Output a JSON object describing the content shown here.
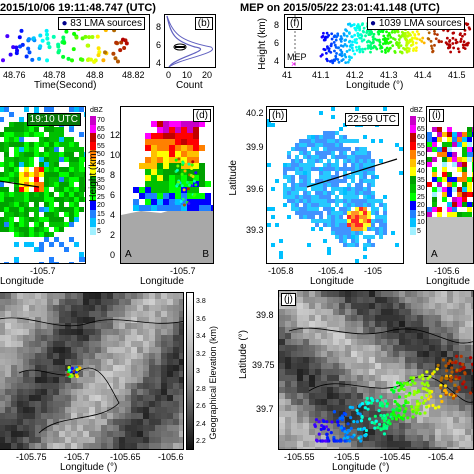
{
  "figure": {
    "left_title": "2015/10/06 19:11:48.747 (UTC)",
    "right_title": "MEP on 2015/05/22 23:01:41.148 (UTC)",
    "panels": {
      "a": {
        "xlabel": "Time(Second)",
        "xticks": [
          "48.76",
          "48.78",
          "48.8",
          "48.82"
        ],
        "legend": "83 LMA sources"
      },
      "b": {
        "label": "(b)",
        "xlabel": "Count",
        "xticks": [
          "0",
          "10",
          "20"
        ],
        "yticks": [
          "4",
          "6",
          "8"
        ]
      },
      "c": {
        "time": "19:10 UTC",
        "xlabel": "Longitude",
        "xtick": "-105.7"
      },
      "d": {
        "label": "(d)",
        "ylabel": "Height (km)",
        "xlabel": "Longitude",
        "xtick": "-105.7",
        "yticks": [
          "0",
          "2",
          "4",
          "6",
          "8",
          "10",
          "12"
        ],
        "corner_a": "A",
        "corner_b": "B",
        "cbar_title": "dBZ",
        "cbar": [
          "70",
          "65",
          "60",
          "55",
          "50",
          "45",
          "40",
          "35",
          "30",
          "25",
          "20",
          "15",
          "10",
          "5"
        ]
      },
      "f": {
        "label": "(f)",
        "ylabel": "Height (km)",
        "xlabel": "Longitude (°)",
        "xticks": [
          "41",
          "41.1",
          "41.2",
          "41.3",
          "41.4",
          "41.5"
        ],
        "yticks": [
          "4",
          "6",
          "8"
        ],
        "legend": "1039 LMA sources",
        "mep": "MEP"
      },
      "h": {
        "label": "(h)",
        "time": "22:59 UTC",
        "ylabel": "Latitude",
        "xlabel": "Longitude",
        "xticks": [
          "-105.8",
          "-105.4",
          "-105"
        ],
        "yticks": [
          "40.2",
          "39.9",
          "39.6",
          "39.3"
        ]
      },
      "i": {
        "label": "(i)",
        "xlabel": "Longitude",
        "xtick": "-105.6",
        "corner_a": "A",
        "cbar_title": "dBZ",
        "cbar": [
          "70",
          "65",
          "60",
          "55",
          "50",
          "45",
          "40",
          "35",
          "30",
          "25",
          "20",
          "15",
          "10",
          "5"
        ]
      },
      "e": {
        "xlabel": "Longitude (°)",
        "xticks": [
          "-105.75",
          "-105.7",
          "-105.65",
          "-105.6"
        ],
        "cbar_label": "Geographical Elevation (km)",
        "cbar": [
          "3.8",
          "3.6",
          "3.4",
          "3.2",
          "3",
          "2.8",
          "2.6",
          "2.4",
          "2.2"
        ]
      },
      "j": {
        "label": "(j)",
        "ylabel": "Latitude (°)",
        "xlabel": "Longitude (°)",
        "xticks": [
          "-105.55",
          "-105.5",
          "-105.45",
          "-105.4"
        ],
        "yticks": [
          "39.8",
          "39.75",
          "39.7"
        ]
      }
    },
    "colors": {
      "dbz": [
        "#c800c8",
        "#ff00ff",
        "#c00000",
        "#ff0000",
        "#ff8000",
        "#ffc000",
        "#ffff00",
        "#00a000",
        "#00c000",
        "#00ff00",
        "#0000ff",
        "#2080ff",
        "#00c0ff",
        "#a0f0ff"
      ]
    }
  }
}
